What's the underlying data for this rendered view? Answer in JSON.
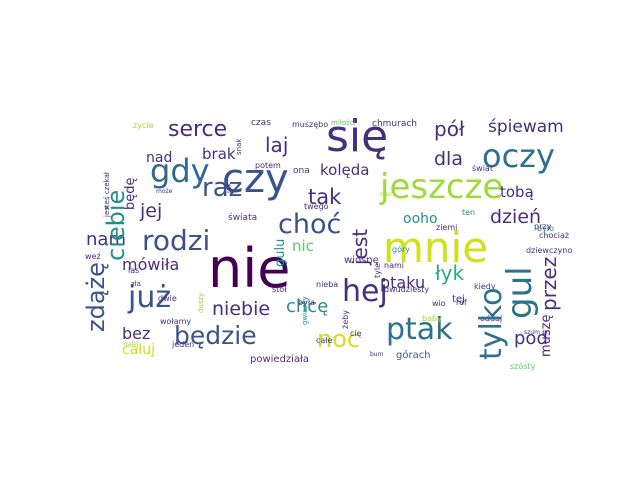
{
  "words": {
    "nie": "nie",
    "sie": "się",
    "czy": "czy",
    "gdy": "gdy",
    "mnie": "mnie",
    "jeszcze": "jeszcze",
    "oczy": "oczy",
    "gul": "gul",
    "hej": "hej",
    "juz": "już",
    "ptak": "ptak",
    "rodzi": "rodzi",
    "ciebie": "ciebie",
    "choc": "choć",
    "bedzie": "będzie",
    "zdaze": "zdążę",
    "raz": "raz",
    "serce": "serce",
    "tylko": "tylko",
    "noc": "noc",
    "laj": "laj",
    "tak": "tak",
    "jest": "jest",
    "pol": "pół",
    "dla": "dla",
    "spiewam": "śpiewam",
    "dzien": "dzień",
    "przez": "przez",
    "lyk": "łyk",
    "nam": "nam",
    "jej": "jej",
    "niebie": "niebie",
    "chce": "chcę",
    "koleda": "kolęda",
    "mowila": "mówiła",
    "bez": "bez",
    "pod": "pod",
    "nad": "nad",
    "brak": "brak",
    "bede": "będę",
    "nic": "nic",
    "ooho": "ooho",
    "toba": "tobą",
    "ptaku": "ptaku",
    "caluj": "całuj",
    "gulu": "gulu",
    "tej": "tej",
    "musze": "muszę",
    "powiedziala": "powiedziała",
    "gorach": "górach",
    "czas": "czas",
    "muszebo": "muszębo",
    "chmurach": "chmurach",
    "swiata": "świata",
    "zycie": "życie",
    "milosci": "miłości",
    "swiat": "świat",
    "bylo": "było",
    "tyle": "tyle",
    "byla": "była",
    "zeby": "żeby",
    "wiosne": "wiosnę",
    "kiedy": "kiedy",
    "ref": "ref",
    "oddaj": "oddaj",
    "dziewczyno": "dziewczyno",
    "przy": "przy",
    "chociaz": "chociaż",
    "ten": "ten",
    "gory": "góry",
    "twego": "twego",
    "ona": "ona",
    "potem": "potem",
    "jak": "jak",
    "snak": "snak",
    "moze": "może",
    "jestes_czekal": "jesteś czekał",
    "wez": "weź",
    "las": "las",
    "zla": "zła",
    "dwie": "dwie",
    "wolamy": "wołamy",
    "jeden": "jeden",
    "stol": "stół",
    "nieba": "nieba",
    "cale": "całe",
    "bum": "bum",
    "dwudziesty": "dwudziesty",
    "baby": "baby",
    "szosty": "szósty",
    "gwiazdy": "gwiazdy",
    "duszy": "duszy",
    "cie": "cię",
    "nami": "nami",
    "wio": "wio",
    "ziemi": "ziemi",
    "dalej": "dalej",
    "niech": "niech",
    "szum": "szum"
  },
  "colors": {
    "dark_purple": "#440154",
    "indigo": "#472f7d",
    "blue_purple": "#3b528b",
    "blue": "#31688e",
    "teal_blue": "#2c728e",
    "teal": "#21908c",
    "green_teal": "#27ad81",
    "green": "#5dc863",
    "lime": "#a0da39",
    "yellow": "#d0e11c"
  }
}
